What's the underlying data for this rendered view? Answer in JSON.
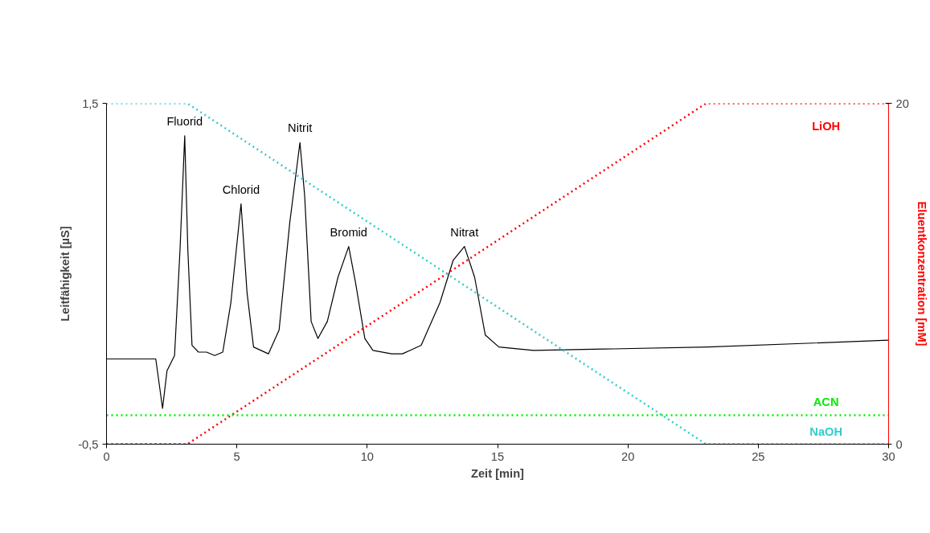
{
  "chart_data": {
    "type": "line",
    "xlabel": "Zeit [min]",
    "ylabel": "Leitfähigkeit [µS]",
    "y2label": "Eluentkonzentration [mM]",
    "xlim": [
      0,
      30
    ],
    "xticks": [
      0,
      5,
      10,
      15,
      20,
      25,
      30
    ],
    "ylim": [
      -0.5,
      1.5
    ],
    "yticks": [
      {
        "value": 1.5,
        "label": "1,5"
      },
      {
        "value": -0.5,
        "label": "-0,5"
      }
    ],
    "y2lim": [
      0,
      20
    ],
    "y2ticks": [
      0,
      20
    ],
    "grid": false,
    "marker": "none",
    "series": [
      {
        "color": "#000000",
        "line_style": "solid",
        "x": [
          0,
          1.89,
          2.15,
          2.32,
          2.61,
          2.82,
          3.0,
          3.12,
          3.28,
          3.53,
          3.84,
          4.15,
          4.46,
          4.77,
          5.16,
          5.39,
          5.64,
          6.21,
          6.62,
          7.03,
          7.42,
          7.6,
          7.85,
          8.11,
          8.47,
          8.88,
          9.29,
          9.55,
          9.91,
          10.22,
          10.94,
          11.35,
          12.07,
          12.79,
          13.3,
          13.73,
          14.12,
          14.53,
          15.05,
          16.38,
          23.07,
          30
        ],
        "values": [
          0,
          0,
          -0.29,
          -0.07,
          0.02,
          0.64,
          1.31,
          0.64,
          0.08,
          0.04,
          0.04,
          0.02,
          0.04,
          0.33,
          0.91,
          0.39,
          0.07,
          0.03,
          0.17,
          0.8,
          1.27,
          0.96,
          0.22,
          0.12,
          0.22,
          0.48,
          0.66,
          0.45,
          0.12,
          0.05,
          0.03,
          0.03,
          0.08,
          0.33,
          0.58,
          0.66,
          0.48,
          0.14,
          0.07,
          0.05,
          0.07,
          0.11
        ]
      },
      {
        "name": "LiOH",
        "color": "#ff0000",
        "line_style": "dotted",
        "axis": "y2",
        "x": [
          0,
          3.1,
          23,
          30
        ],
        "values": [
          0,
          0,
          20,
          20
        ]
      },
      {
        "name": "ACN",
        "color": "#00ee00",
        "line_style": "dotted",
        "axis": "y2",
        "x": [
          0,
          30
        ],
        "values": [
          1.7,
          1.7
        ]
      },
      {
        "name": "NaOH",
        "color": "#33cccc",
        "line_style": "dotted",
        "axis": "y2",
        "x": [
          0,
          3.1,
          23,
          30
        ],
        "values": [
          20,
          20,
          0,
          0
        ]
      }
    ],
    "annotations": [
      {
        "text": "Fluorid",
        "x": 3.0,
        "y": 1.31
      },
      {
        "text": "Chlorid",
        "x": 5.16,
        "y": 0.91
      },
      {
        "text": "Nitrit",
        "x": 7.42,
        "y": 1.27
      },
      {
        "text": "Bromid",
        "x": 9.29,
        "y": 0.66
      },
      {
        "text": "Nitrat",
        "x": 13.73,
        "y": 0.66
      }
    ]
  }
}
